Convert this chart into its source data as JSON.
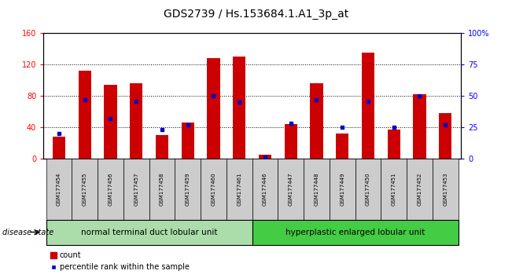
{
  "title": "GDS2739 / Hs.153684.1.A1_3p_at",
  "samples": [
    "GSM177454",
    "GSM177455",
    "GSM177456",
    "GSM177457",
    "GSM177458",
    "GSM177459",
    "GSM177460",
    "GSM177461",
    "GSM177446",
    "GSM177447",
    "GSM177448",
    "GSM177449",
    "GSM177450",
    "GSM177451",
    "GSM177452",
    "GSM177453"
  ],
  "counts": [
    28,
    112,
    94,
    96,
    30,
    46,
    128,
    130,
    5,
    44,
    96,
    32,
    135,
    37,
    82,
    58
  ],
  "percentiles": [
    20,
    47,
    32,
    46,
    23,
    27,
    50,
    45,
    1,
    28,
    47,
    25,
    46,
    25,
    50,
    27
  ],
  "group1_label": "normal terminal duct lobular unit",
  "group2_label": "hyperplastic enlarged lobular unit",
  "group1_count": 8,
  "group2_count": 8,
  "disease_state_label": "disease state",
  "ylim_left": [
    0,
    160
  ],
  "ylim_right": [
    0,
    100
  ],
  "yticks_left": [
    0,
    40,
    80,
    120,
    160
  ],
  "yticks_right": [
    0,
    25,
    50,
    75,
    100
  ],
  "bar_color": "#cc0000",
  "dot_color": "#0000cc",
  "bar_width": 0.5,
  "group1_bg": "#aaddaa",
  "group2_bg": "#44cc44",
  "tick_bg": "#cccccc",
  "legend_count_label": "count",
  "legend_pct_label": "percentile rank within the sample",
  "title_fontsize": 10,
  "axis_fontsize": 7,
  "label_fontsize": 7
}
